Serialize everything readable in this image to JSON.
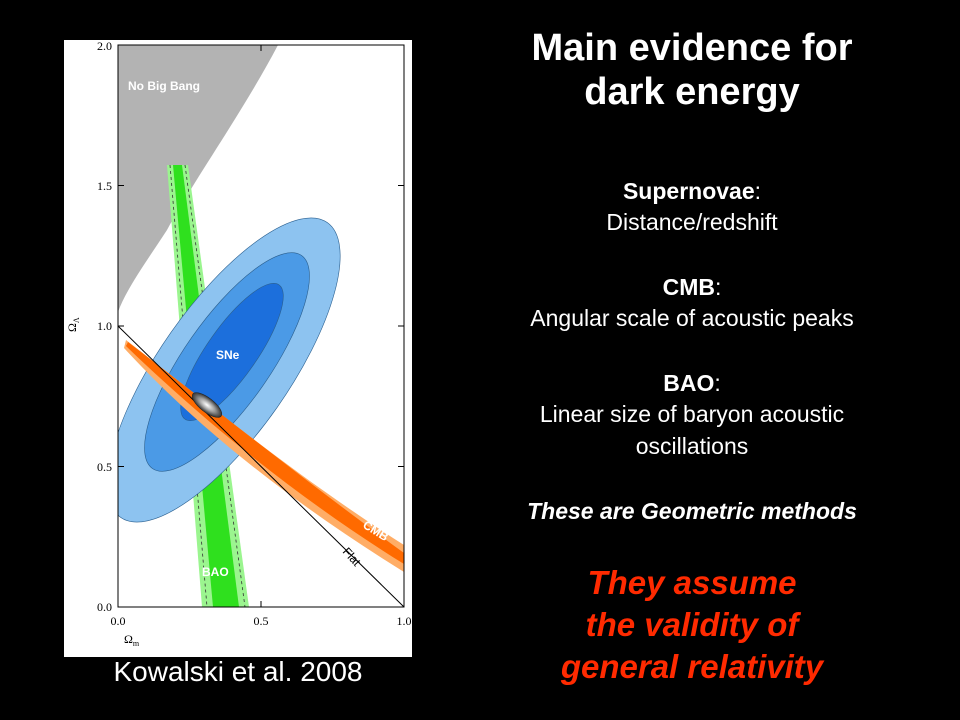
{
  "title_lines": [
    "Main evidence for",
    "dark energy"
  ],
  "evidence": [
    {
      "name": "Supernovae",
      "suffix": ":",
      "description_lines": [
        "Distance/redshift"
      ]
    },
    {
      "name": "CMB",
      "suffix": ":",
      "description_lines": [
        "Angular scale of acoustic peaks"
      ]
    },
    {
      "name": "BAO",
      "suffix": ":",
      "description_lines": [
        "Linear size of baryon acoustic",
        "oscillations"
      ]
    }
  ],
  "geometric_note": "These are Geometric methods",
  "assumption_lines": [
    "They assume",
    "the validity of",
    "general relativity"
  ],
  "citation": "Kowalski et al. 2008",
  "figure": {
    "x_ticks": [
      "0.0",
      "0.5",
      "1.0"
    ],
    "y_ticks": [
      "0.0",
      "0.5",
      "1.0",
      "1.5",
      "2.0"
    ],
    "xlabel_main": "Ω",
    "xlabel_sub": "m",
    "ylabel_main": "Ω",
    "ylabel_sub": "Λ",
    "labels": {
      "no_big_bang": "No Big Bang",
      "sne": "SNe",
      "bao": "BAO",
      "cmb": "CMB",
      "flat": "Flat"
    },
    "colors": {
      "no_big_bang": "#b3b3b3",
      "sne_outer": "#8dc3f0",
      "sne_mid": "#4b9ae6",
      "sne_inner": "#1c6fdc",
      "bao_outer": "#9bf58f",
      "bao_inner": "#2fe01e",
      "cmb_outer": "#ffad66",
      "cmb_inner": "#ff6a00"
    }
  }
}
